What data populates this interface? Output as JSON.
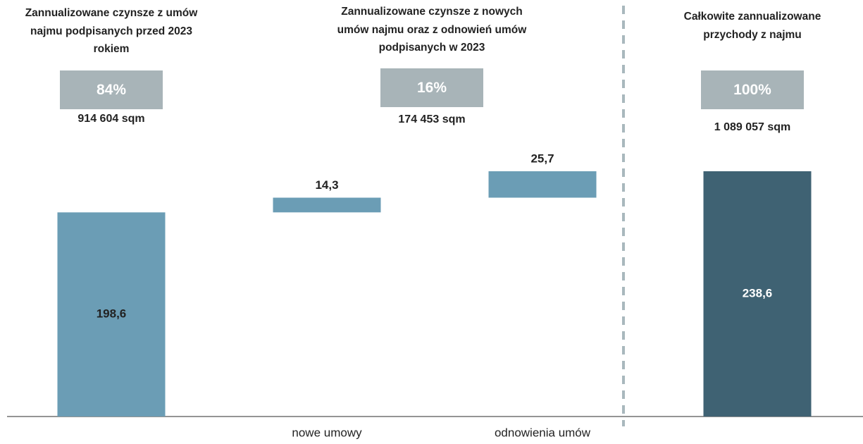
{
  "chart_data": {
    "type": "waterfall",
    "categories": [
      null,
      "nowe umowy",
      "odnowienia umów",
      null
    ],
    "values": [
      198.6,
      14.3,
      25.7,
      238.6
    ],
    "value_labels": [
      "198,6",
      "14,3",
      "25,7",
      "238,6"
    ],
    "colors": [
      "#6b9db5",
      "#6b9db5",
      "#6b9db5",
      "#3f6273"
    ],
    "groups": [
      {
        "title": "Zannualizowane czynsze z umów najmu podpisanych przed 2023 rokiem",
        "share": "84%",
        "area": "914 604 sqm"
      },
      {
        "title": "Zannualizowane czynsze z nowych umów najmu oraz z odnowień umów podpisanych w 2023",
        "share": "16%",
        "area": "174 453 sqm"
      },
      {
        "title": "Całkowite zannualizowane przychody z najmu",
        "share": "100%",
        "area": "1 089 057 sqm"
      }
    ]
  }
}
